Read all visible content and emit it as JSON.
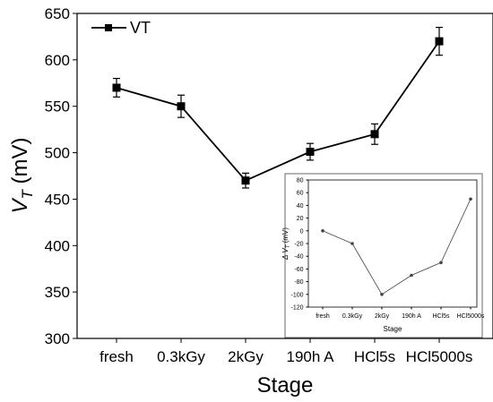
{
  "chart_data": [
    {
      "type": "line",
      "title": "",
      "xlabel": "Stage",
      "ylabel_main": "V",
      "ylabel_sub": "T",
      "ylabel_unit": " (mV)",
      "ylim": [
        300,
        650
      ],
      "yticks": [
        300,
        350,
        400,
        450,
        500,
        550,
        600,
        650
      ],
      "categories": [
        "fresh",
        "0.3kGy",
        "2kGy",
        "190h A",
        "HCl5s",
        "HCl5000s"
      ],
      "series": [
        {
          "name": "VT",
          "values": [
            570,
            550,
            470,
            501,
            520,
            620
          ],
          "errors": [
            10,
            12,
            8,
            9,
            11,
            15
          ],
          "marker": "square",
          "color": "#000000"
        }
      ],
      "grid": false,
      "legend_position": "top-left"
    },
    {
      "type": "line",
      "title": "",
      "xlabel": "Stage",
      "ylabel_main": "Δ V",
      "ylabel_sub": "T",
      "ylabel_unit": " (mV)",
      "ylim": [
        -120,
        80
      ],
      "yticks": [
        -120,
        -100,
        -80,
        -60,
        -40,
        -20,
        0,
        20,
        40,
        60,
        80
      ],
      "categories": [
        "fresh",
        "0.3kGy",
        "2kGy",
        "190h A",
        "HCl5s",
        "HCl5000s"
      ],
      "series": [
        {
          "values": [
            0,
            -20,
            -100,
            -70,
            -50,
            50
          ],
          "marker": "circle",
          "color": "#444444"
        }
      ],
      "grid": false
    }
  ]
}
